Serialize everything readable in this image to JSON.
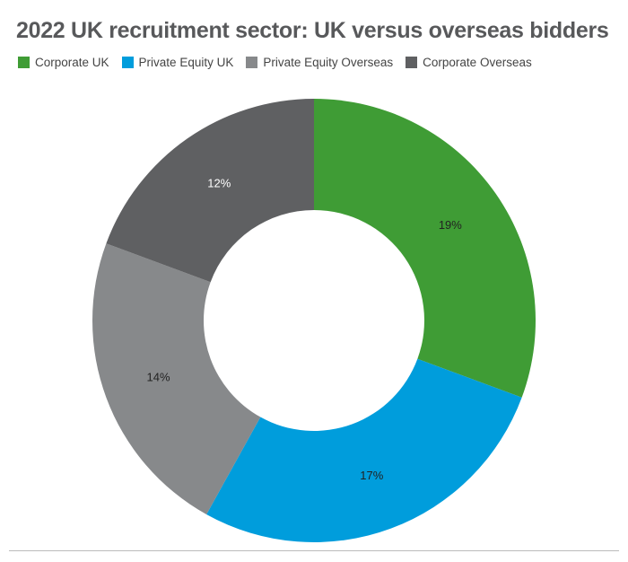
{
  "chart_data": {
    "type": "donut",
    "title": "2022 UK recruitment sector: UK versus overseas bidders",
    "categories": [
      "Corporate UK",
      "Private Equity UK",
      "Private Equity Overseas",
      "Corporate Overseas"
    ],
    "values": [
      19,
      17,
      14,
      12
    ],
    "value_labels": [
      "19%",
      "17%",
      "14%",
      "12%"
    ],
    "colors": [
      "#3f9c35",
      "#009ddc",
      "#87898b",
      "#5f6062"
    ]
  }
}
